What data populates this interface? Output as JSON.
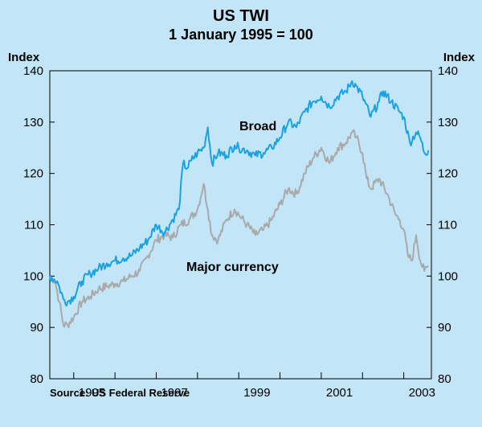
{
  "chart_data": {
    "type": "line",
    "title": "US TWI",
    "subtitle": "1 January 1995 = 100",
    "ylabel_left": "Index",
    "ylabel_right": "Index",
    "ylim": [
      80,
      140
    ],
    "yticks": [
      80,
      90,
      100,
      110,
      120,
      130,
      140
    ],
    "xlim": [
      1994.42,
      2003.67
    ],
    "xtick_labels": [
      "1995",
      "1997",
      "1999",
      "2001",
      "2003"
    ],
    "source": "Source: US Federal Reserve",
    "series": [
      {
        "name": "Broad",
        "color": "#1aa3e0",
        "x": [
          1994.42,
          1994.6,
          1994.75,
          1994.85,
          1995.0,
          1995.2,
          1995.4,
          1995.6,
          1995.8,
          1996.0,
          1996.2,
          1996.4,
          1996.6,
          1996.8,
          1997.0,
          1997.2,
          1997.4,
          1997.55,
          1997.65,
          1997.75,
          1997.85,
          1998.0,
          1998.15,
          1998.25,
          1998.35,
          1998.5,
          1998.7,
          1998.9,
          1999.0,
          1999.2,
          1999.4,
          1999.6,
          1999.8,
          2000.0,
          2000.2,
          2000.4,
          2000.6,
          2000.8,
          2001.0,
          2001.2,
          2001.4,
          2001.6,
          2001.75,
          2001.85,
          2002.0,
          2002.2,
          2002.4,
          2002.5,
          2002.7,
          2002.9,
          2003.0,
          2003.15,
          2003.3,
          2003.4,
          2003.5,
          2003.6
        ],
        "y": [
          100,
          99,
          95.5,
          95,
          96,
          99,
          100.5,
          101.5,
          102.5,
          103,
          103.5,
          104,
          105.5,
          107,
          110,
          108.5,
          111,
          113,
          122,
          121,
          122.5,
          124,
          125,
          129,
          122,
          124,
          123.5,
          125.5,
          125,
          124.5,
          123.5,
          124,
          125,
          127,
          130,
          129,
          132,
          134,
          135,
          133,
          135,
          136,
          138,
          137,
          135,
          131,
          134,
          136,
          134,
          132,
          131,
          126,
          128,
          127,
          124,
          124.5
        ]
      },
      {
        "name": "Major currency",
        "color": "#a9a9a9",
        "x": [
          1994.42,
          1994.55,
          1994.65,
          1994.75,
          1994.85,
          1995.0,
          1995.2,
          1995.4,
          1995.6,
          1995.8,
          1996.0,
          1996.2,
          1996.4,
          1996.6,
          1996.8,
          1997.0,
          1997.2,
          1997.4,
          1997.6,
          1997.8,
          1998.0,
          1998.15,
          1998.25,
          1998.35,
          1998.5,
          1998.7,
          1998.9,
          1999.0,
          1999.2,
          1999.4,
          1999.6,
          1999.8,
          2000.0,
          2000.2,
          2000.4,
          2000.6,
          2000.8,
          2001.0,
          2001.2,
          2001.4,
          2001.6,
          2001.75,
          2001.85,
          2002.0,
          2002.1,
          2002.2,
          2002.4,
          2002.6,
          2002.8,
          2002.9,
          2003.0,
          2003.1,
          2003.2,
          2003.3,
          2003.4,
          2003.5,
          2003.6
        ],
        "y": [
          100,
          99,
          95,
          90.5,
          90.5,
          92,
          95,
          96,
          97.5,
          98,
          98.5,
          99,
          100,
          101,
          104,
          107,
          108,
          107.5,
          110,
          111,
          113,
          118,
          113,
          108,
          107,
          111,
          113,
          112,
          110,
          108,
          109,
          111,
          114,
          117,
          116,
          120,
          123,
          125,
          122,
          125,
          126,
          128,
          127,
          124,
          119,
          117,
          119,
          116,
          112,
          111,
          109,
          104,
          103,
          108,
          103,
          101,
          102
        ]
      }
    ]
  },
  "labels": {
    "broad": "Broad",
    "major": "Major currency"
  }
}
